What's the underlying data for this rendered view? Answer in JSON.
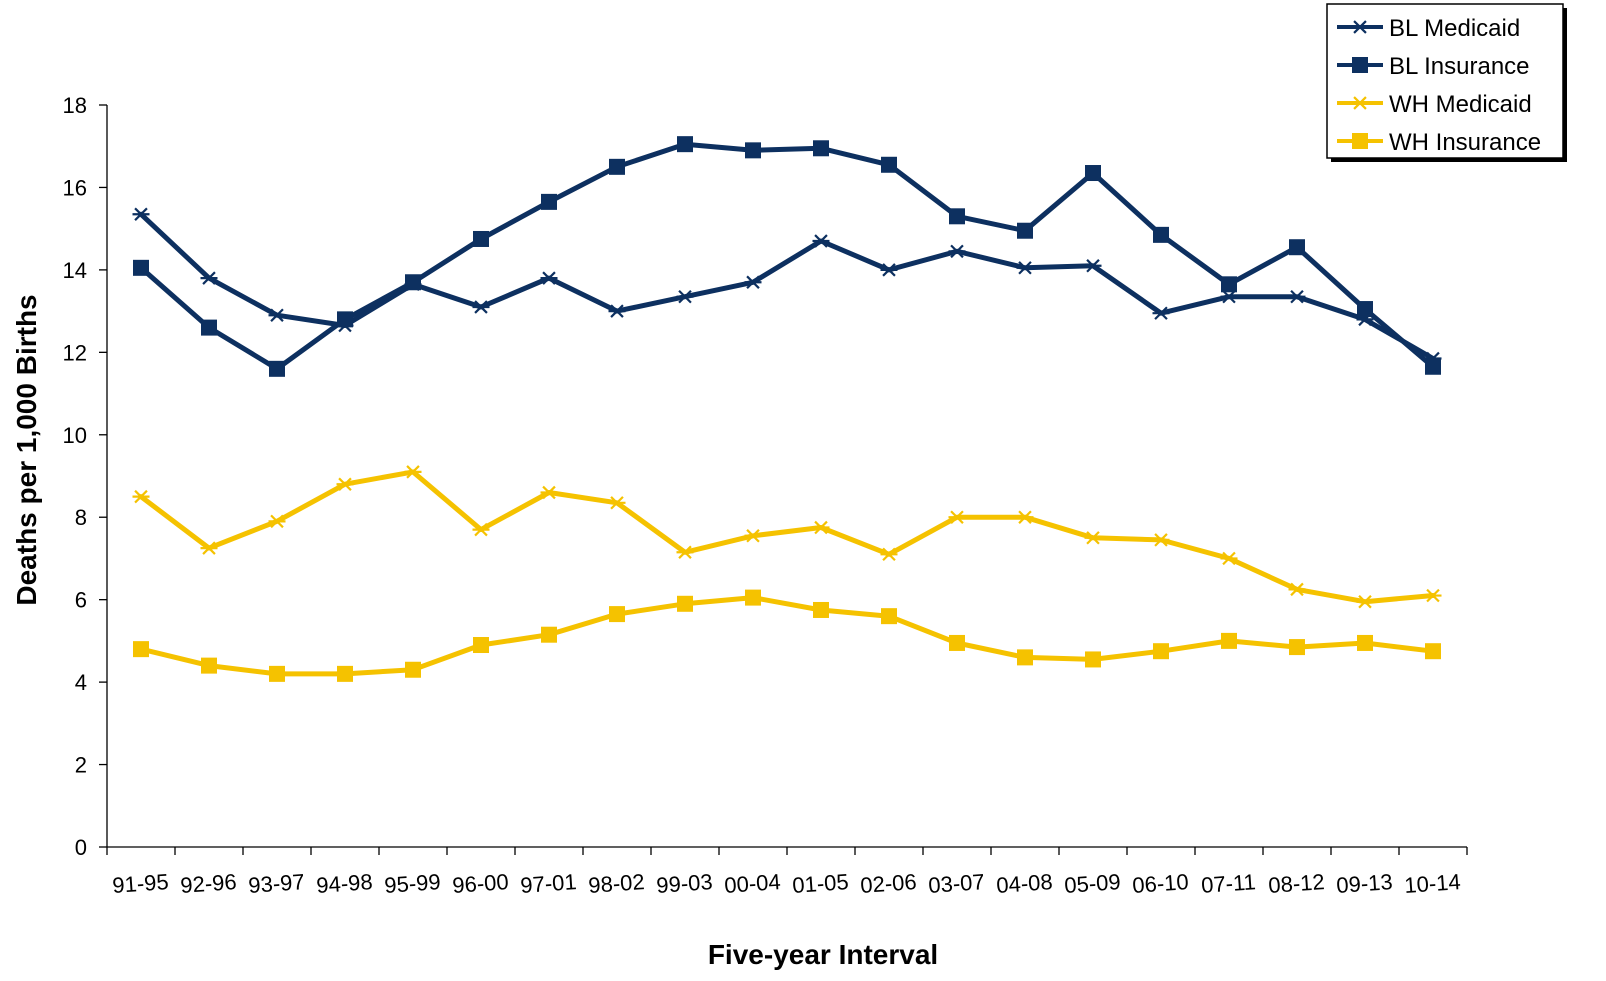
{
  "chart_data": {
    "type": "line",
    "xlabel": "Five-year Interval",
    "ylabel": "Deaths per 1,000 Births",
    "ylim": [
      0,
      18
    ],
    "yticks": [
      0,
      2,
      4,
      6,
      8,
      10,
      12,
      14,
      16,
      18
    ],
    "grid": false,
    "legend_position": "top-right",
    "categories": [
      "91-95",
      "92-96",
      "93-97",
      "94-98",
      "95-99",
      "96-00",
      "97-01",
      "98-02",
      "99-03",
      "00-04",
      "01-05",
      "02-06",
      "03-07",
      "04-08",
      "05-09",
      "06-10",
      "07-11",
      "08-12",
      "09-13",
      "10-14"
    ],
    "series": [
      {
        "name": "BL Medicaid",
        "color": "#0d3060",
        "marker": "asterisk",
        "values": [
          15.35,
          13.8,
          12.9,
          12.65,
          13.65,
          13.1,
          13.8,
          13.0,
          13.35,
          13.7,
          14.7,
          14.0,
          14.45,
          14.05,
          14.1,
          12.95,
          13.35,
          13.35,
          12.8,
          11.85
        ]
      },
      {
        "name": "BL Insurance",
        "color": "#0d3060",
        "marker": "square",
        "values": [
          14.05,
          12.6,
          11.6,
          12.8,
          13.7,
          14.75,
          15.65,
          16.5,
          17.05,
          16.9,
          16.95,
          16.55,
          15.3,
          14.95,
          16.35,
          14.85,
          13.65,
          14.55,
          13.05,
          11.65
        ]
      },
      {
        "name": "WH Medicaid",
        "color": "#f5c200",
        "marker": "asterisk",
        "values": [
          8.5,
          7.25,
          7.9,
          8.8,
          9.1,
          7.7,
          8.6,
          8.35,
          7.15,
          7.55,
          7.75,
          7.1,
          8.0,
          8.0,
          7.5,
          7.45,
          7.0,
          6.25,
          5.95,
          6.1
        ]
      },
      {
        "name": "WH Insurance",
        "color": "#f5c200",
        "marker": "square",
        "values": [
          4.8,
          4.4,
          4.2,
          4.2,
          4.3,
          4.9,
          5.15,
          5.65,
          5.9,
          6.05,
          5.75,
          5.6,
          4.95,
          4.6,
          4.55,
          4.75,
          5.0,
          4.85,
          4.95,
          4.75
        ]
      }
    ]
  }
}
